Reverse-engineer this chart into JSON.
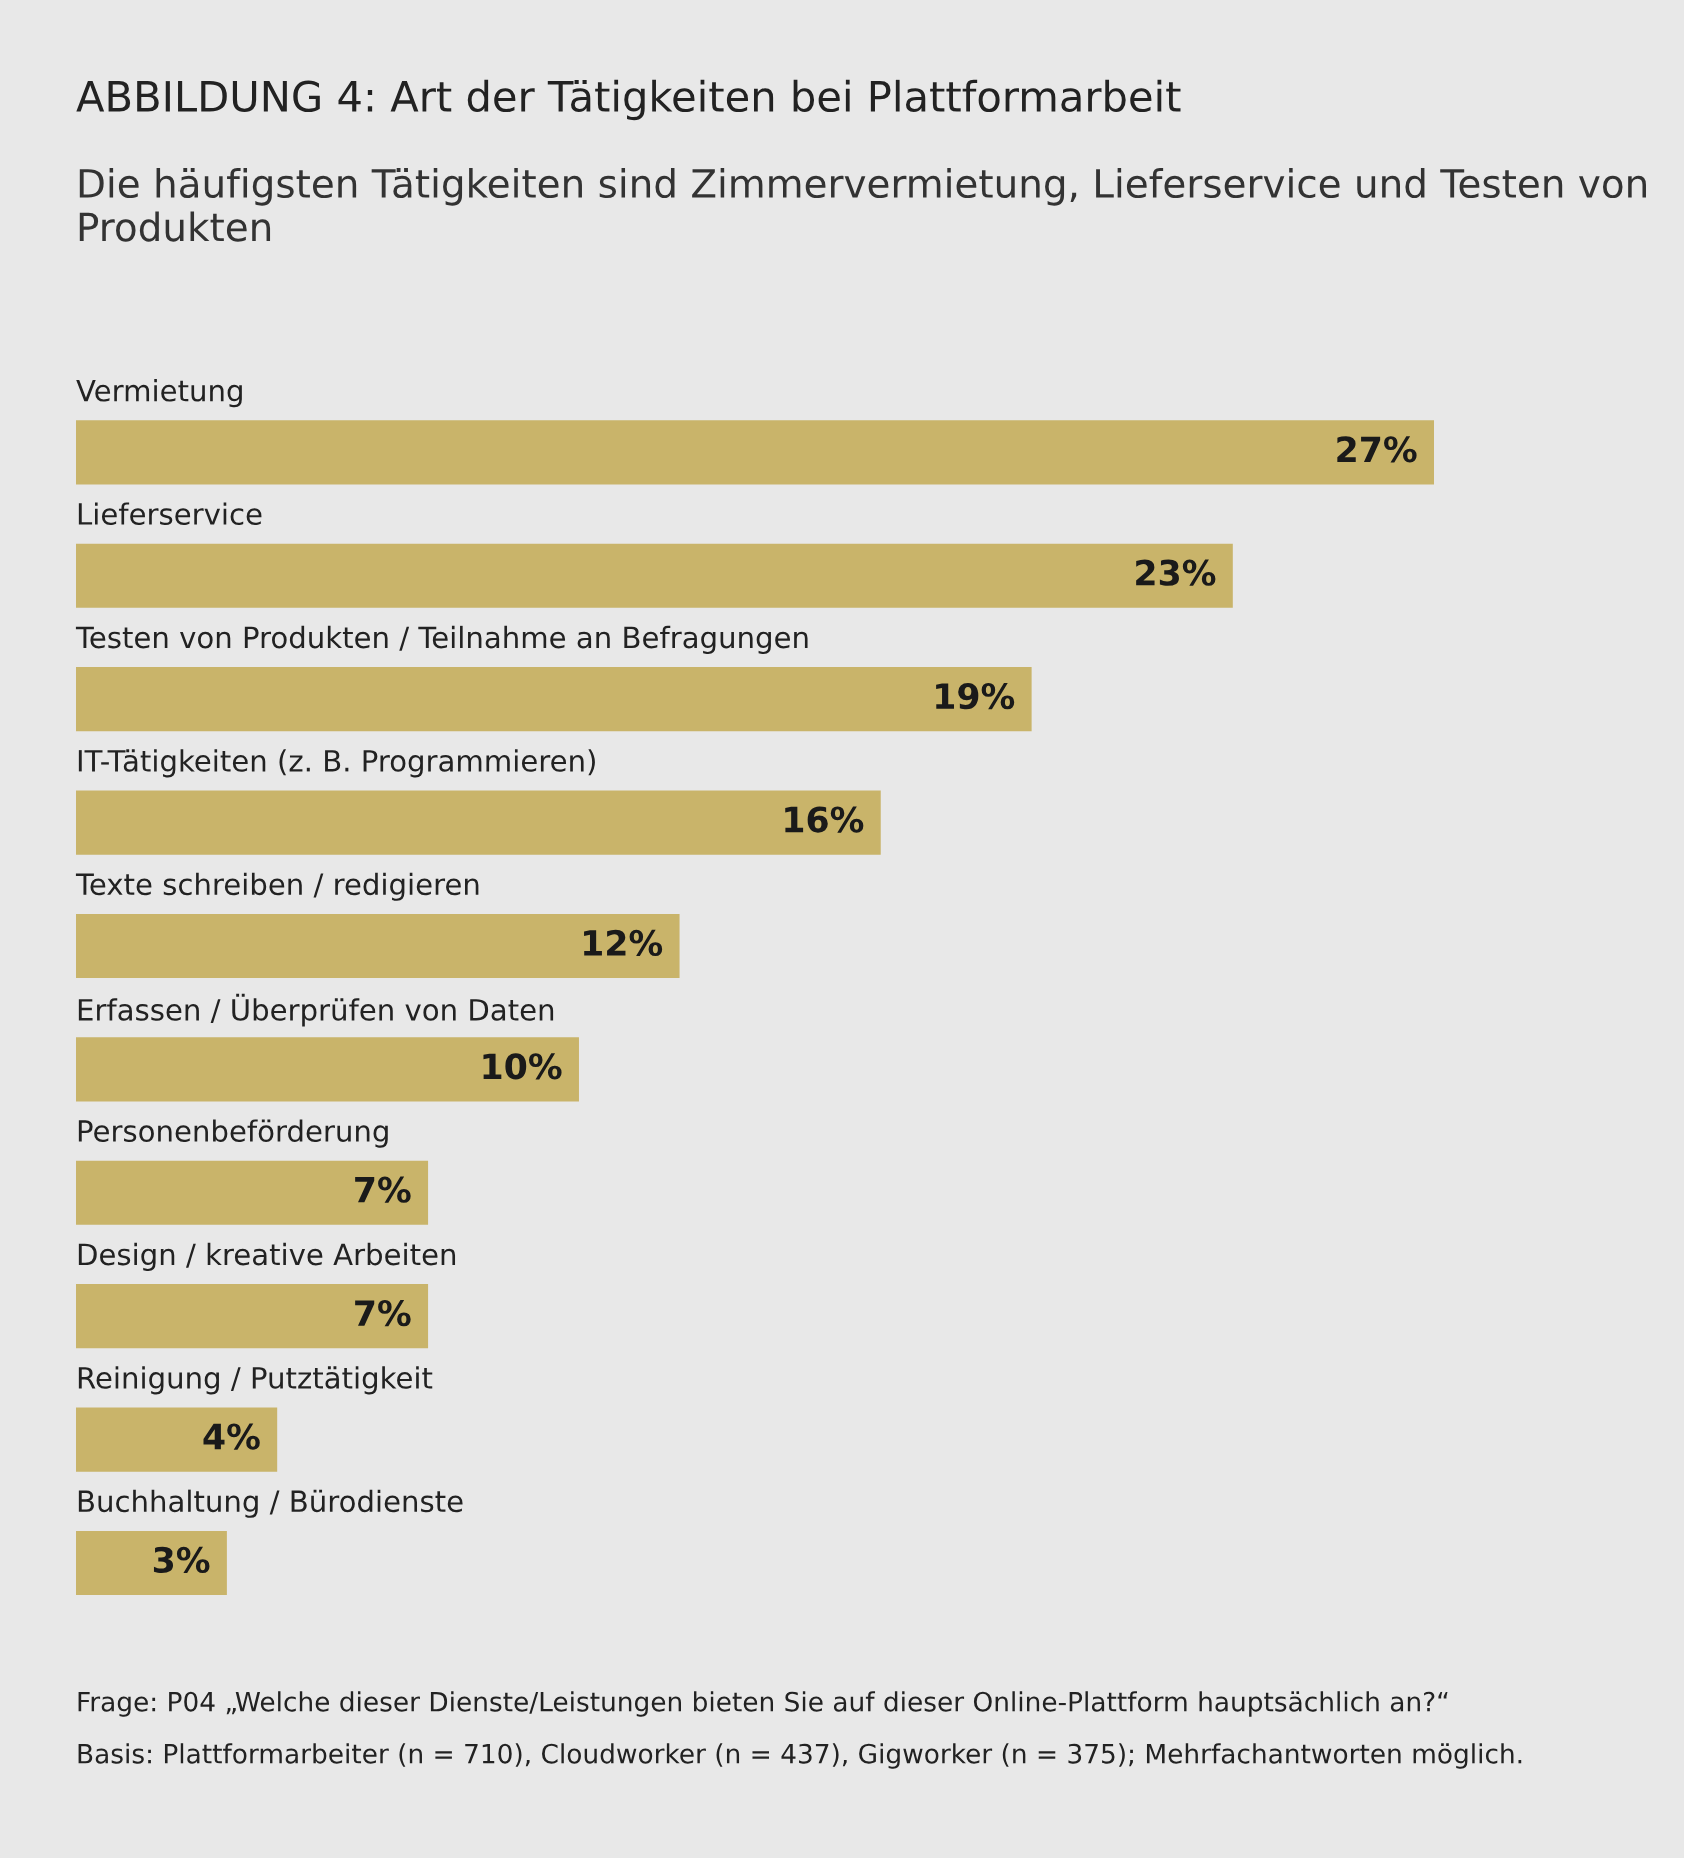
{
  "chart_data": {
    "type": "bar",
    "orientation": "horizontal",
    "title": "ABBILDUNG 4: Art der Tätigkeiten bei Plattformarbeit",
    "subtitle": "Die häufigsten Tätigkeiten sind Zimmervermietung, Lieferservice und Testen von Produkten",
    "categories": [
      "Vermietung",
      "Lieferservice",
      "Testen von Produkten / Teilnahme an Befragungen",
      "IT-Tätigkeiten (z. B. Programmieren)",
      "Texte schreiben / redigieren",
      "Erfassen / Überprüfen von Daten",
      "Personenbeförderung",
      "Design / kreative Arbeiten",
      "Reinigung / Putztätigkeit",
      "Buchhaltung / Bürodienste"
    ],
    "values": [
      27,
      23,
      19,
      16,
      12,
      10,
      7,
      7,
      4,
      3
    ],
    "value_labels": [
      "27%",
      "23%",
      "19%",
      "16%",
      "12%",
      "10%",
      "7%",
      "7%",
      "4%",
      "3%"
    ],
    "color": "#c9b46a",
    "annotations": [
      "Frage: P04 „Welche dieser Dienste/Leistungen bieten Sie auf dieser Online-Plattform hauptsächlich an?“",
      "Basis: Plattformarbeiter (n = 710), Cloudworker (n = 437), Gigworker (n = 375); Mehrfachantworten möglich."
    ]
  }
}
